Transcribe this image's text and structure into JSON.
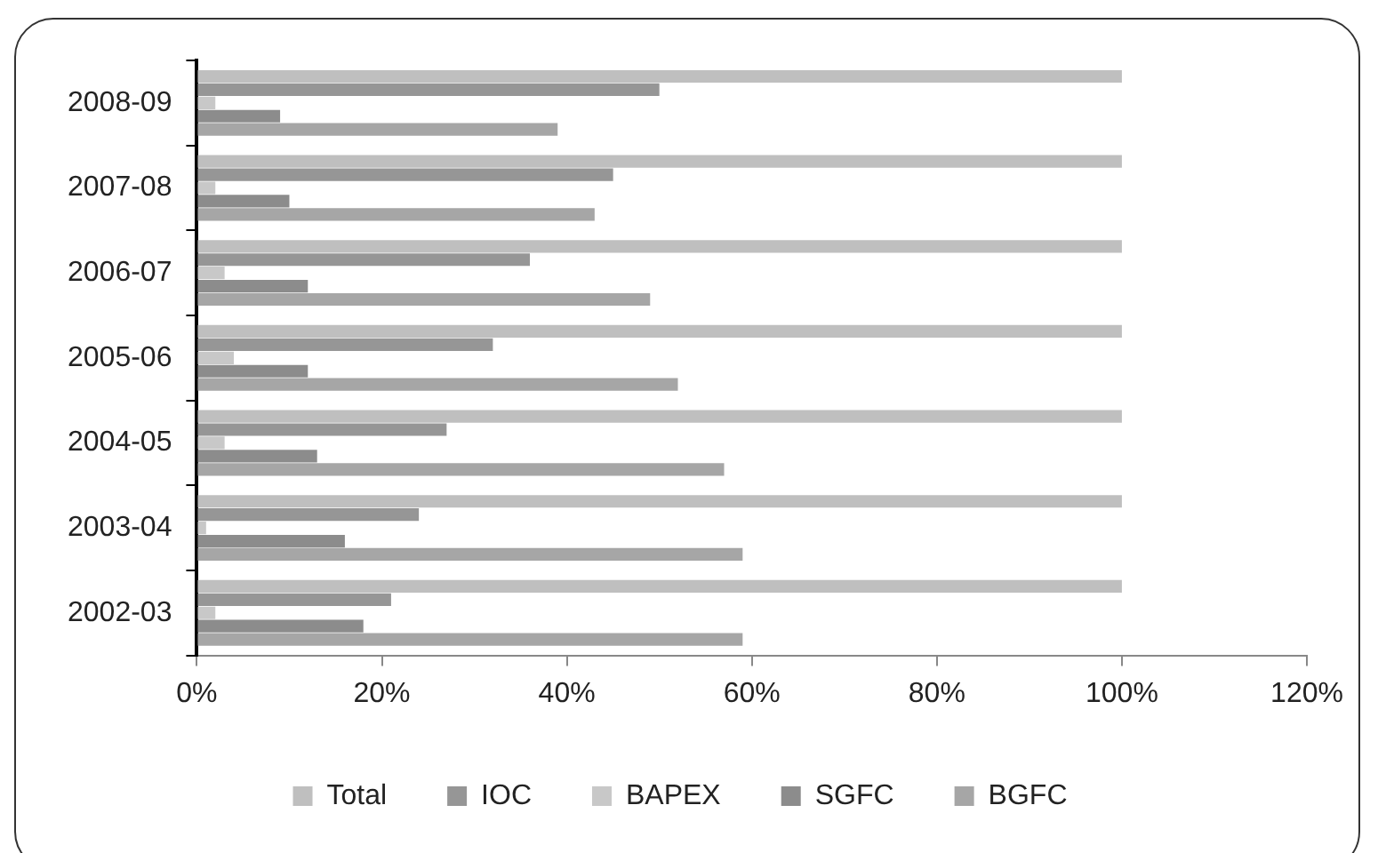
{
  "chart_data": {
    "type": "bar",
    "orientation": "horizontal",
    "categories": [
      "2008-09",
      "2007-08",
      "2006-07",
      "2005-06",
      "2004-05",
      "2003-04",
      "2002-03"
    ],
    "series": [
      {
        "name": "Total",
        "color": "#bfbfbf",
        "values": [
          100,
          100,
          100,
          100,
          100,
          100,
          100
        ]
      },
      {
        "name": "IOC",
        "color": "#969696",
        "values": [
          50,
          45,
          36,
          32,
          27,
          24,
          21
        ]
      },
      {
        "name": "BAPEX",
        "color": "#c8c8c8",
        "values": [
          2,
          2,
          3,
          4,
          3,
          1,
          2
        ]
      },
      {
        "name": "SGFC",
        "color": "#8c8c8c",
        "values": [
          9,
          10,
          12,
          12,
          13,
          16,
          18
        ]
      },
      {
        "name": "BGFC",
        "color": "#a6a6a6",
        "values": [
          39,
          43,
          49,
          52,
          57,
          59,
          59
        ]
      }
    ],
    "xlim": [
      0,
      120
    ],
    "xticks": [
      {
        "value": 0,
        "label": "0%"
      },
      {
        "value": 20,
        "label": "20%"
      },
      {
        "value": 40,
        "label": "40%"
      },
      {
        "value": 60,
        "label": "60%"
      },
      {
        "value": 80,
        "label": "80%"
      },
      {
        "value": 100,
        "label": "100%"
      },
      {
        "value": 120,
        "label": "120%"
      }
    ],
    "grid": false,
    "legend": "bottom"
  }
}
